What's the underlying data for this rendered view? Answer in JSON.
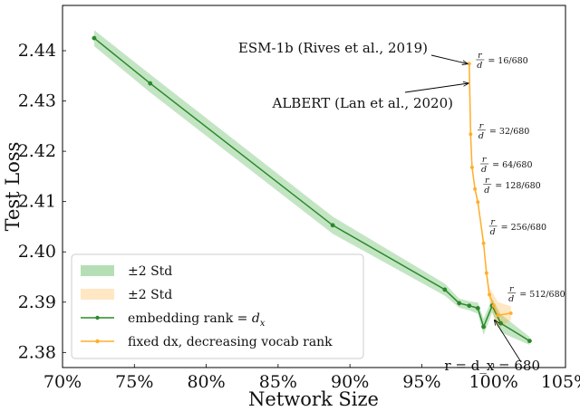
{
  "chart_data": {
    "type": "line",
    "xlabel": "Network Size",
    "ylabel": "Test Loss",
    "xlim": [
      70,
      105
    ],
    "ylim": [
      2.377,
      2.449
    ],
    "x_ticks": [
      70,
      75,
      80,
      85,
      90,
      95,
      100,
      105
    ],
    "x_tick_labels": [
      "70%",
      "75%",
      "80%",
      "85%",
      "90%",
      "95%",
      "100%",
      "105%"
    ],
    "y_ticks": [
      2.38,
      2.39,
      2.4,
      2.41,
      2.42,
      2.43,
      2.44
    ],
    "y_tick_labels": [
      "2.38",
      "2.39",
      "2.40",
      "2.41",
      "2.42",
      "2.43",
      "2.44"
    ],
    "grid": false,
    "legend_position": "bottom-left",
    "legend": [
      {
        "kind": "band",
        "label": "±2 Std",
        "color": "#2ca02c"
      },
      {
        "kind": "band",
        "label": "±2 Std",
        "color": "#ff9f0f"
      },
      {
        "kind": "line",
        "label": "embedding rank = d_x",
        "label_plain": "embedding rank = ",
        "label_math": "d",
        "label_sub": "x",
        "color": "#2a8a2a"
      },
      {
        "kind": "line",
        "label": "fixed dx, decreasing vocab rank",
        "color": "#ffae2a"
      }
    ],
    "series": [
      {
        "name": "embedding rank = d_x",
        "color": "#2a8a2a",
        "band_color": "#2ca02c",
        "x": [
          72.2,
          76.1,
          88.8,
          96.6,
          97.6,
          98.3,
          98.9,
          99.3,
          99.9,
          100.5,
          102.5
        ],
        "y": [
          2.4425,
          2.4335,
          2.4053,
          2.3925,
          2.3898,
          2.3893,
          2.3888,
          2.3851,
          2.3893,
          2.3858,
          2.3823
        ],
        "std2": [
          0.0016,
          0.0018,
          0.0017,
          0.0012,
          0.0009,
          0.0009,
          0.0011,
          0.0016,
          0.0014,
          0.0018,
          0.0008
        ]
      },
      {
        "name": "fixed dx, decreasing vocab rank",
        "color": "#ffae2a",
        "band_color": "#ff9f0f",
        "x": [
          98.3,
          98.4,
          98.5,
          98.7,
          98.9,
          99.3,
          99.5,
          99.7,
          100.0,
          100.3,
          101.2
        ],
        "y": [
          2.4374,
          2.4234,
          2.4168,
          2.4125,
          2.4099,
          2.4017,
          2.3958,
          2.3915,
          2.3893,
          2.3874,
          2.3878
        ],
        "std2": [
          0.0006,
          0.0006,
          0.0006,
          0.0007,
          0.0008,
          0.0011,
          0.0012,
          0.0014,
          0.0022,
          0.0026,
          0.0014
        ]
      }
    ],
    "annotations": [
      {
        "text": "ESM-1b (Rives et al., 2019)",
        "point": [
          98.3,
          2.4374
        ]
      },
      {
        "text": "ALBERT (Lan et al., 2020)",
        "point": [
          98.3,
          2.4337
        ]
      },
      {
        "text": "r = d_x = 680",
        "point": [
          100.0,
          2.3868
        ]
      }
    ],
    "ratio_labels": [
      {
        "num": "16",
        "den": "680",
        "point": [
          98.4,
          2.4382
        ]
      },
      {
        "num": "32",
        "den": "680",
        "point": [
          98.5,
          2.4242
        ]
      },
      {
        "num": "64",
        "den": "680",
        "point": [
          98.7,
          2.4175
        ]
      },
      {
        "num": "128",
        "den": "680",
        "point": [
          98.9,
          2.4134
        ]
      },
      {
        "num": "256",
        "den": "680",
        "point": [
          99.3,
          2.4051
        ]
      },
      {
        "num": "512",
        "den": "680",
        "point": [
          100.6,
          2.3918
        ]
      }
    ]
  }
}
